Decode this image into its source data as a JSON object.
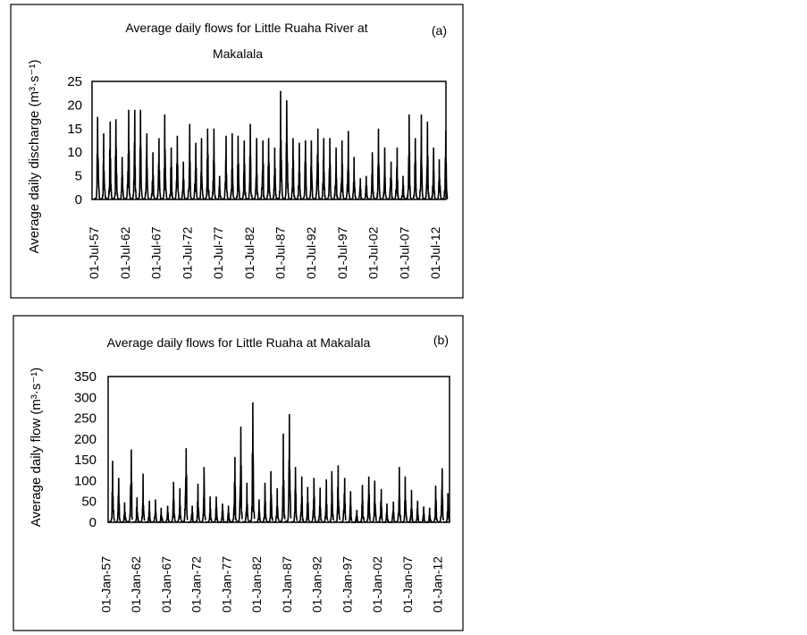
{
  "chart_data": [
    {
      "id": "a",
      "type": "line",
      "panel_label": "(a)",
      "title_line1": "Average daily flows for Little Ruaha River at",
      "title_line2": "Makalala",
      "ylabel": "Average daily discharge (m³·s⁻¹)",
      "xlabel": "",
      "ylim": [
        0,
        25
      ],
      "yticks": [
        "0",
        "5",
        "10",
        "15",
        "20",
        "25"
      ],
      "ytick_values": [
        0,
        5,
        10,
        15,
        20,
        25
      ],
      "xlim": [
        1957.2,
        2014.2
      ],
      "xticks": [
        "01-Jul-57",
        "01-Jul-62",
        "01-Jul-67",
        "01-Jul-72",
        "01-Jul-77",
        "01-Jul-82",
        "01-Jul-87",
        "01-Jul-92",
        "01-Jul-97",
        "01-Jul-02",
        "01-Jul-07",
        "01-Jul-12"
      ],
      "xtick_values": [
        1957.5,
        1962.5,
        1967.5,
        1972.5,
        1977.5,
        1982.5,
        1987.5,
        1992.5,
        1997.5,
        2002.5,
        2007.5,
        2012.5
      ],
      "season_start_year": 1957.5,
      "season_peak_fraction": 0.65,
      "annual_peaks": [
        17.5,
        14,
        16.5,
        17,
        9,
        19,
        19,
        19,
        14,
        10,
        13,
        18,
        11,
        13.5,
        8,
        16,
        12,
        13,
        15,
        15,
        5,
        13.5,
        14,
        13.5,
        12.5,
        16,
        13,
        12.5,
        13,
        11,
        23,
        21,
        13,
        12,
        12.5,
        12.5,
        15,
        13,
        13,
        11,
        12.5,
        14.5,
        9,
        4.5,
        5,
        10,
        15,
        11,
        8,
        11,
        5,
        18,
        13,
        18,
        16.5,
        11,
        8.5,
        14.5
      ],
      "grid": false,
      "legend": "none"
    },
    {
      "id": "b",
      "type": "line",
      "panel_label": "(b)",
      "title_line1": "Average daily flows for Little Ruaha at Makalala",
      "title_line2": "",
      "ylabel": "Average daily flow (m³·s⁻¹)",
      "xlabel": "",
      "ylim": [
        0,
        350
      ],
      "yticks": [
        "0",
        "50",
        "100",
        "150",
        "200",
        "250",
        "300",
        "350"
      ],
      "ytick_values": [
        0,
        50,
        100,
        150,
        200,
        250,
        300,
        350
      ],
      "xlim": [
        1957.4,
        2014.0
      ],
      "xticks": [
        "01-Jan-57",
        "01-Jan-62",
        "01-Jan-67",
        "01-Jan-72",
        "01-Jan-77",
        "01-Jan-82",
        "01-Jan-87",
        "01-Jan-92",
        "01-Jan-97",
        "01-Jan-02",
        "01-Jan-07",
        "01-Jan-12"
      ],
      "xtick_values": [
        1957,
        1962,
        1967,
        1972,
        1977,
        1982,
        1987,
        1992,
        1997,
        2002,
        2007,
        2012
      ],
      "season_start_year": 1957.4,
      "season_peak_fraction": 0.75,
      "annual_peaks": [
        148,
        107,
        48,
        175,
        60,
        117,
        52,
        55,
        35,
        40,
        97,
        82,
        178,
        40,
        93,
        133,
        62,
        62,
        45,
        40,
        157,
        230,
        95,
        288,
        55,
        95,
        123,
        82,
        213,
        260,
        133,
        110,
        85,
        107,
        83,
        103,
        123,
        137,
        107,
        75,
        30,
        90,
        110,
        100,
        80,
        45,
        50,
        133,
        110,
        78,
        52,
        38,
        35,
        88,
        130,
        70
      ],
      "grid": false,
      "legend": "none"
    }
  ]
}
